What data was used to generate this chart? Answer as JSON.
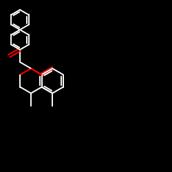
{
  "bg_color": "#000000",
  "bond_color": "#ffffff",
  "oxygen_color": "#ff0000",
  "line_width": 1.4,
  "figsize": [
    2.5,
    2.5
  ],
  "dpi": 100,
  "xlim": [
    0,
    10
  ],
  "ylim": [
    0,
    10
  ],
  "bl": 0.82
}
